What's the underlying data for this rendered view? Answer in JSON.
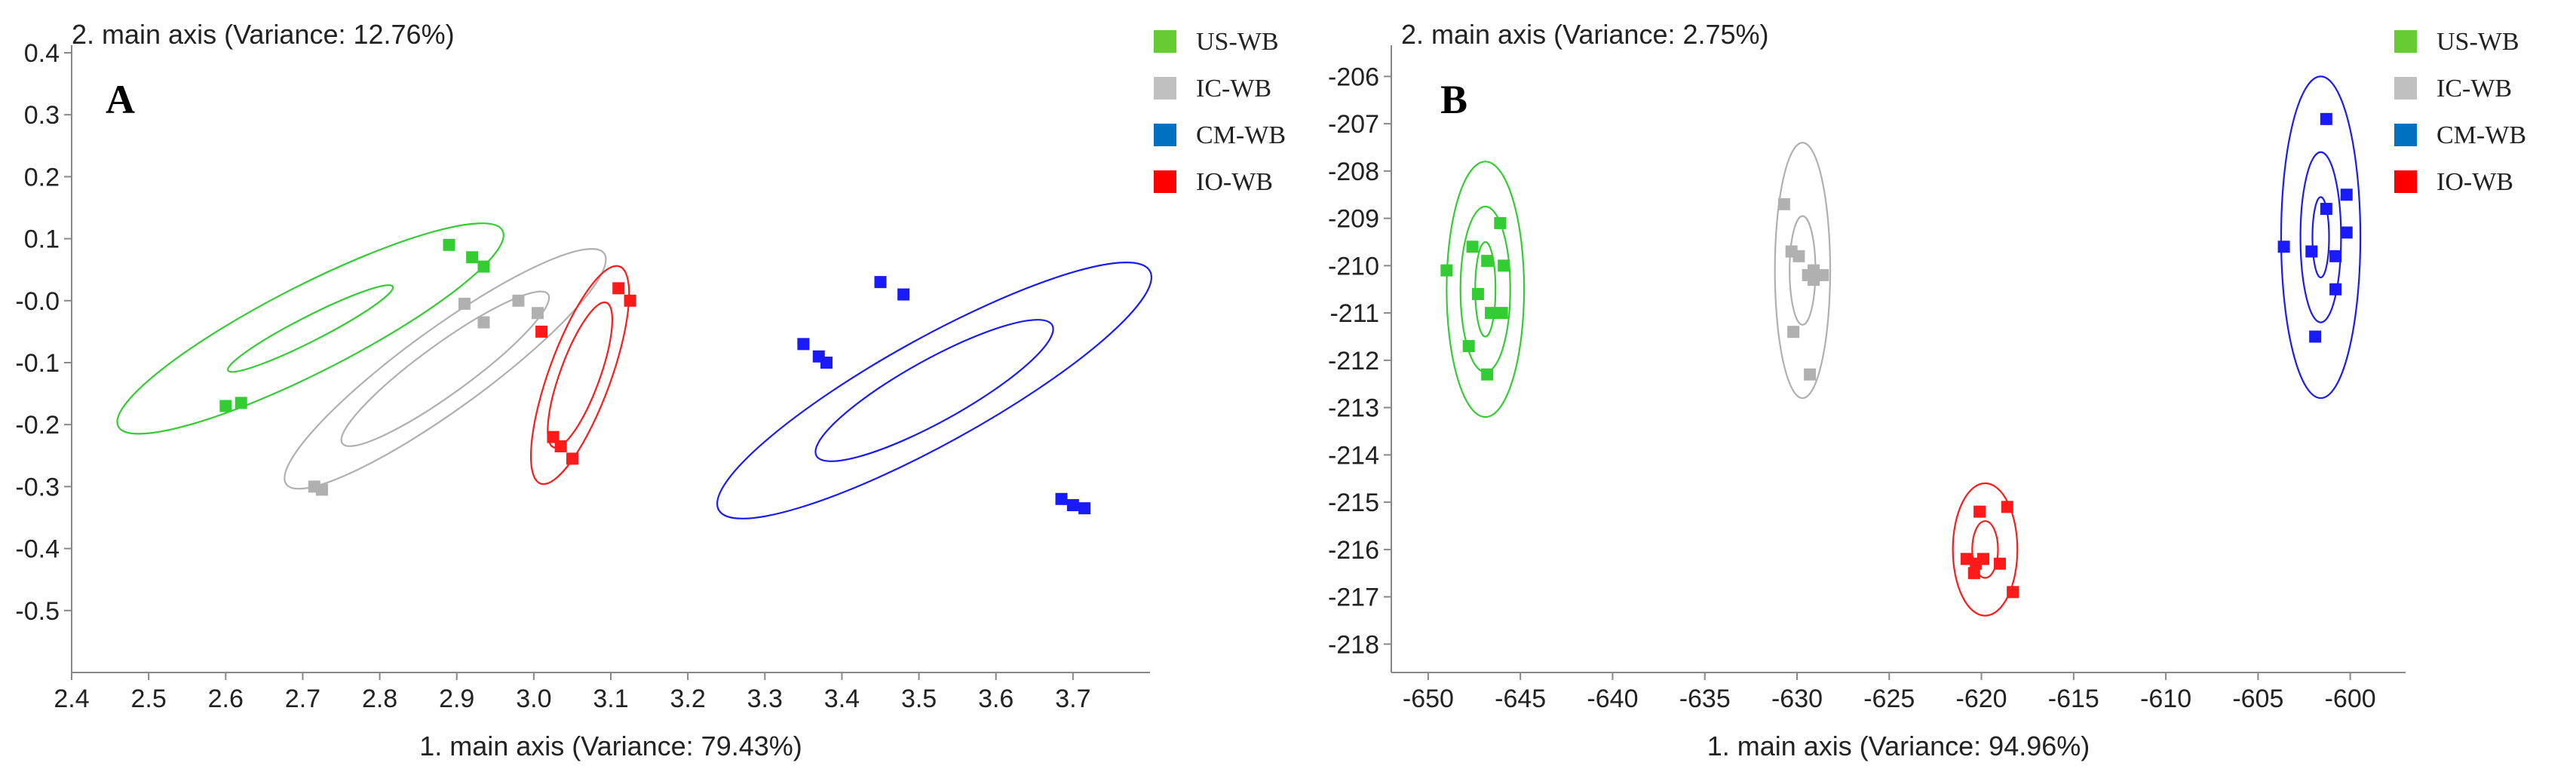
{
  "chart_data": [
    {
      "type": "scatter",
      "panel_label": "A",
      "xlabel": "1. main axis (Variance: 79.43%)",
      "ylabel": "2. main axis (Variance: 12.76%)",
      "xlim": [
        2.4,
        3.8
      ],
      "ylim": [
        -0.6,
        0.4
      ],
      "xticks": [
        "2.4",
        "2.5",
        "2.6",
        "2.7",
        "2.8",
        "2.9",
        "3.0",
        "3.1",
        "3.2",
        "3.3",
        "3.4",
        "3.5",
        "3.6",
        "3.7"
      ],
      "yticks": [
        "0.4",
        "0.3",
        "0.2",
        "0.1",
        "-0.0",
        "-0.1",
        "-0.2",
        "-0.3",
        "-0.4",
        "-0.5"
      ],
      "legend": [
        "US-WB",
        "IC-WB",
        "CM-WB",
        "IO-WB"
      ],
      "series": [
        {
          "name": "US-WB",
          "color": "#33cc33",
          "legend_color": "#66cc33",
          "points": [
            [
              2.89,
              0.09
            ],
            [
              2.92,
              0.07
            ],
            [
              2.935,
              0.055
            ],
            [
              2.6,
              -0.17
            ],
            [
              2.62,
              -0.165
            ]
          ],
          "ellipses": [
            {
              "cx": 2.71,
              "cy": -0.045,
              "rx": 0.28,
              "ry": 0.07,
              "angle": -27
            },
            {
              "cx": 2.71,
              "cy": -0.045,
              "rx": 0.12,
              "ry": 0.02,
              "angle": -27
            }
          ]
        },
        {
          "name": "IC-WB",
          "color": "#b0b0b0",
          "legend_color": "#c0c0c0",
          "points": [
            [
              2.91,
              -0.005
            ],
            [
              2.935,
              -0.035
            ],
            [
              2.98,
              0.0
            ],
            [
              3.005,
              -0.02
            ],
            [
              2.715,
              -0.3
            ],
            [
              2.725,
              -0.305
            ]
          ],
          "ellipses": [
            {
              "cx": 2.885,
              "cy": -0.11,
              "rx": 0.255,
              "ry": 0.065,
              "angle": -36
            },
            {
              "cx": 2.885,
              "cy": -0.11,
              "rx": 0.165,
              "ry": 0.04,
              "angle": -36
            }
          ]
        },
        {
          "name": "CM-WB",
          "color": "#1a1aff",
          "legend_color": "#0070c0",
          "points": [
            [
              3.45,
              0.03
            ],
            [
              3.48,
              0.01
            ],
            [
              3.35,
              -0.07
            ],
            [
              3.37,
              -0.09
            ],
            [
              3.38,
              -0.1
            ],
            [
              3.685,
              -0.32
            ],
            [
              3.7,
              -0.33
            ],
            [
              3.715,
              -0.335
            ]
          ],
          "ellipses": [
            {
              "cx": 3.52,
              "cy": -0.145,
              "rx": 0.32,
              "ry": 0.085,
              "angle": -29
            },
            {
              "cx": 3.52,
              "cy": -0.145,
              "rx": 0.175,
              "ry": 0.05,
              "angle": -29
            }
          ]
        },
        {
          "name": "IO-WB",
          "color": "#ff1a1a",
          "legend_color": "#ff0000",
          "points": [
            [
              3.11,
              0.02
            ],
            [
              3.125,
              0.0
            ],
            [
              3.01,
              -0.05
            ],
            [
              3.025,
              -0.22
            ],
            [
              3.035,
              -0.235
            ],
            [
              3.05,
              -0.255
            ]
          ],
          "ellipses": [
            {
              "cx": 3.06,
              "cy": -0.12,
              "rx": 0.15,
              "ry": 0.05,
              "angle": -70
            },
            {
              "cx": 3.06,
              "cy": -0.12,
              "rx": 0.1,
              "ry": 0.032,
              "angle": -70
            }
          ]
        }
      ]
    },
    {
      "type": "scatter",
      "panel_label": "B",
      "xlabel": "1. main axis (Variance: 94.96%)",
      "ylabel": "2. main axis (Variance: 2.75%)",
      "xlim": [
        -652,
        -597
      ],
      "ylim": [
        -218.6,
        -205.5
      ],
      "xticks": [
        "-650",
        "-645",
        "-640",
        "-635",
        "-630",
        "-625",
        "-620",
        "-615",
        "-610",
        "-605",
        "-600"
      ],
      "yticks": [
        "-206",
        "-207",
        "-208",
        "-209",
        "-210",
        "-211",
        "-212",
        "-213",
        "-214",
        "-215",
        "-216",
        "-217",
        "-218"
      ],
      "legend": [
        "US-WB",
        "IC-WB",
        "CM-WB",
        "IO-WB"
      ],
      "series": [
        {
          "name": "US-WB",
          "color": "#33cc33",
          "legend_color": "#66cc33",
          "points": [
            [
              -646.1,
              -209.1
            ],
            [
              -647.6,
              -209.6
            ],
            [
              -646.8,
              -209.9
            ],
            [
              -645.9,
              -210.0
            ],
            [
              -649.0,
              -210.1
            ],
            [
              -647.3,
              -210.6
            ],
            [
              -646.6,
              -211.0
            ],
            [
              -646.0,
              -211.0
            ],
            [
              -647.8,
              -211.7
            ],
            [
              -646.8,
              -212.3
            ]
          ],
          "ellipses": [
            {
              "cx": -646.9,
              "cy": -210.5,
              "rx": 2.1,
              "ry": 2.7,
              "angle": 0
            },
            {
              "cx": -646.9,
              "cy": -210.5,
              "rx": 1.35,
              "ry": 1.75,
              "angle": 0
            },
            {
              "cx": -646.9,
              "cy": -210.5,
              "rx": 0.55,
              "ry": 1.0,
              "angle": 0
            }
          ]
        },
        {
          "name": "IC-WB",
          "color": "#b0b0b0",
          "legend_color": "#c0c0c0",
          "points": [
            [
              -630.7,
              -208.7
            ],
            [
              -630.3,
              -209.7
            ],
            [
              -629.9,
              -209.8
            ],
            [
              -629.1,
              -210.1
            ],
            [
              -628.6,
              -210.2
            ],
            [
              -629.4,
              -210.2
            ],
            [
              -629.1,
              -210.3
            ],
            [
              -630.2,
              -211.4
            ],
            [
              -629.3,
              -212.3
            ]
          ],
          "ellipses": [
            {
              "cx": -629.7,
              "cy": -210.1,
              "rx": 1.5,
              "ry": 2.7,
              "angle": 0
            },
            {
              "cx": -629.7,
              "cy": -210.1,
              "rx": 0.7,
              "ry": 1.15,
              "angle": 0
            }
          ]
        },
        {
          "name": "CM-WB",
          "color": "#1a1aff",
          "legend_color": "#0070c0",
          "points": [
            [
              -601.3,
              -206.9
            ],
            [
              -600.2,
              -208.5
            ],
            [
              -601.3,
              -208.8
            ],
            [
              -600.2,
              -209.3
            ],
            [
              -603.6,
              -209.6
            ],
            [
              -602.1,
              -209.7
            ],
            [
              -600.8,
              -209.8
            ],
            [
              -600.8,
              -210.5
            ],
            [
              -601.9,
              -211.5
            ]
          ],
          "ellipses": [
            {
              "cx": -601.6,
              "cy": -209.4,
              "rx": 2.15,
              "ry": 3.4,
              "angle": 0
            },
            {
              "cx": -601.6,
              "cy": -209.4,
              "rx": 1.1,
              "ry": 1.8,
              "angle": 0
            },
            {
              "cx": -601.6,
              "cy": -209.4,
              "rx": 0.45,
              "ry": 0.85,
              "angle": 0
            }
          ]
        },
        {
          "name": "IO-WB",
          "color": "#ff1a1a",
          "legend_color": "#ff0000",
          "points": [
            [
              -620.1,
              -215.2
            ],
            [
              -618.6,
              -215.1
            ],
            [
              -620.8,
              -216.2
            ],
            [
              -620.3,
              -216.3
            ],
            [
              -619.9,
              -216.2
            ],
            [
              -619.0,
              -216.3
            ],
            [
              -620.4,
              -216.5
            ],
            [
              -618.3,
              -216.9
            ]
          ],
          "ellipses": [
            {
              "cx": -619.8,
              "cy": -216.0,
              "rx": 1.75,
              "ry": 1.4,
              "angle": 0
            },
            {
              "cx": -619.8,
              "cy": -216.0,
              "rx": 0.7,
              "ry": 0.6,
              "angle": 0
            }
          ]
        }
      ]
    }
  ]
}
